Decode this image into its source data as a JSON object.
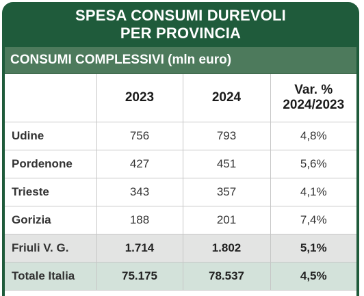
{
  "title": {
    "line1": "SPESA CONSUMI DUREVOLI",
    "line2": "PER PROVINCIA"
  },
  "section": {
    "label": "CONSUMI COMPLESSIVI (mln euro)"
  },
  "table": {
    "headers": {
      "col1": "2023",
      "col2": "2024",
      "col3_line1": "Var. %",
      "col3_line2": "2024/2023"
    },
    "rows": [
      {
        "name": "Udine",
        "v2023": "756",
        "v2024": "793",
        "var": "4,8%"
      },
      {
        "name": "Pordenone",
        "v2023": "427",
        "v2024": "451",
        "var": "5,6%"
      },
      {
        "name": "Trieste",
        "v2023": "343",
        "v2024": "357",
        "var": "4,1%"
      },
      {
        "name": "Gorizia",
        "v2023": "188",
        "v2024": "201",
        "var": "7,4%"
      },
      {
        "name": "Friuli V. G.",
        "v2023": "1.714",
        "v2024": "1.802",
        "var": "5,1%"
      },
      {
        "name": "Totale Italia",
        "v2023": "75.175",
        "v2024": "78.537",
        "var": "4,5%"
      }
    ]
  },
  "colors": {
    "frame": "#1f5b3b",
    "section_bar": "#4d7a5c",
    "region_row": "#e3e4e3",
    "italy_row": "#d3e2da"
  }
}
